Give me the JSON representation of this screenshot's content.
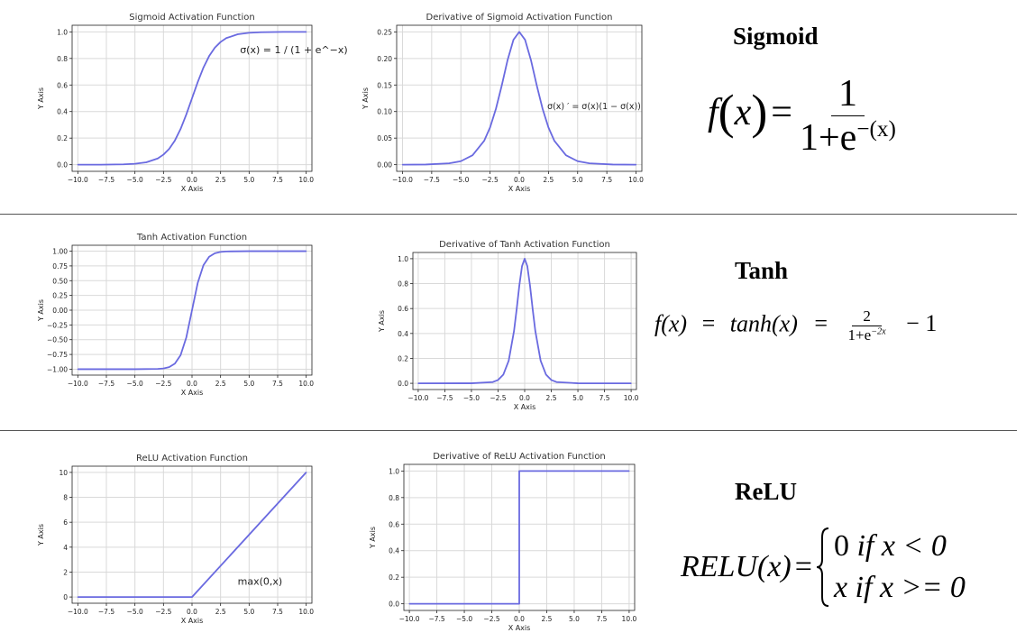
{
  "colors": {
    "line": "#6a6ae0",
    "grid": "#d9d9d9",
    "axis": "#000000"
  },
  "chart_data": [
    {
      "id": "sigmoid",
      "type": "line",
      "title": "Sigmoid Activation Function",
      "xlabel": "X Axis",
      "ylabel": "Y Axis",
      "xlim": [
        -10.5,
        10.5
      ],
      "ylim": [
        -0.05,
        1.05
      ],
      "xticks": [
        -10,
        -7.5,
        -5,
        -2.5,
        0,
        2.5,
        5,
        7.5,
        10
      ],
      "xtick_labels": [
        "−10.0",
        "−7.5",
        "−5.0",
        "−2.5",
        "0.0",
        "2.5",
        "5.0",
        "7.5",
        "10.0"
      ],
      "yticks": [
        0,
        0.2,
        0.4,
        0.6,
        0.8,
        1.0
      ],
      "ytick_labels": [
        "0.0",
        "0.2",
        "0.4",
        "0.6",
        "0.8",
        "1.0"
      ],
      "grid": true,
      "x": [
        -10,
        -8,
        -6,
        -5,
        -4,
        -3,
        -2.5,
        -2,
        -1.5,
        -1,
        -0.5,
        0,
        0.5,
        1,
        1.5,
        2,
        2.5,
        3,
        4,
        5,
        6,
        8,
        10
      ],
      "y": [
        0.0,
        0.0003,
        0.0025,
        0.0067,
        0.018,
        0.047,
        0.076,
        0.119,
        0.182,
        0.269,
        0.378,
        0.5,
        0.622,
        0.731,
        0.818,
        0.881,
        0.924,
        0.953,
        0.982,
        0.993,
        0.9975,
        0.9997,
        1.0
      ],
      "annotation": "σ(x) = 1 / (1 + e^−x)"
    },
    {
      "id": "sigmoid-deriv",
      "type": "line",
      "title": "Derivative of Sigmoid Activation Function",
      "xlabel": "X Axis",
      "ylabel": "Y Axis",
      "xlim": [
        -10.5,
        10.5
      ],
      "ylim": [
        -0.0125,
        0.2625
      ],
      "xticks": [
        -10,
        -7.5,
        -5,
        -2.5,
        0,
        2.5,
        5,
        7.5,
        10
      ],
      "xtick_labels": [
        "−10.0",
        "−7.5",
        "−5.0",
        "−2.5",
        "0.0",
        "2.5",
        "5.0",
        "7.5",
        "10.0"
      ],
      "yticks": [
        0,
        0.05,
        0.1,
        0.15,
        0.2,
        0.25
      ],
      "ytick_labels": [
        "0.00",
        "0.05",
        "0.10",
        "0.15",
        "0.20",
        "0.25"
      ],
      "grid": true,
      "x": [
        -10,
        -8,
        -6,
        -5,
        -4,
        -3,
        -2.5,
        -2,
        -1.5,
        -1,
        -0.5,
        0,
        0.5,
        1,
        1.5,
        2,
        2.5,
        3,
        4,
        5,
        6,
        8,
        10
      ],
      "y": [
        5e-05,
        0.0003,
        0.0025,
        0.0066,
        0.0177,
        0.0452,
        0.0701,
        0.105,
        0.149,
        0.197,
        0.235,
        0.25,
        0.235,
        0.197,
        0.149,
        0.105,
        0.0701,
        0.0452,
        0.0177,
        0.0066,
        0.0025,
        0.0003,
        5e-05
      ],
      "annotation": "σ(x) ′ = σ(x)(1 − σ(x))"
    },
    {
      "id": "tanh",
      "type": "line",
      "title": "Tanh Activation Function",
      "xlabel": "X Axis",
      "ylabel": "Y Axis",
      "xlim": [
        -10.5,
        10.5
      ],
      "ylim": [
        -1.1,
        1.1
      ],
      "xticks": [
        -10,
        -7.5,
        -5,
        -2.5,
        0,
        2.5,
        5,
        7.5,
        10
      ],
      "xtick_labels": [
        "−10.0",
        "−7.5",
        "−5.0",
        "−2.5",
        "0.0",
        "2.5",
        "5.0",
        "7.5",
        "10.0"
      ],
      "yticks": [
        -1,
        -0.75,
        -0.5,
        -0.25,
        0,
        0.25,
        0.5,
        0.75,
        1.0
      ],
      "ytick_labels": [
        "−1.00",
        "−0.75",
        "−0.50",
        "−0.25",
        "0.00",
        "0.25",
        "0.50",
        "0.75",
        "1.00"
      ],
      "grid": true,
      "x": [
        -10,
        -5,
        -3,
        -2.5,
        -2,
        -1.5,
        -1,
        -0.5,
        0,
        0.5,
        1,
        1.5,
        2,
        2.5,
        3,
        5,
        10
      ],
      "y": [
        -1,
        -0.9999,
        -0.995,
        -0.987,
        -0.964,
        -0.905,
        -0.762,
        -0.462,
        0,
        0.462,
        0.762,
        0.905,
        0.964,
        0.987,
        0.995,
        0.9999,
        1
      ]
    },
    {
      "id": "tanh-deriv",
      "type": "line",
      "title": "Derivative of Tanh Activation Function",
      "xlabel": "X Axis",
      "ylabel": "Y Axis",
      "xlim": [
        -10.5,
        10.5
      ],
      "ylim": [
        -0.05,
        1.05
      ],
      "xticks": [
        -10,
        -7.5,
        -5,
        -2.5,
        0,
        2.5,
        5,
        7.5,
        10
      ],
      "xtick_labels": [
        "−10.0",
        "−7.5",
        "−5.0",
        "−2.5",
        "0.0",
        "2.5",
        "5.0",
        "7.5",
        "10.0"
      ],
      "yticks": [
        0,
        0.2,
        0.4,
        0.6,
        0.8,
        1.0
      ],
      "ytick_labels": [
        "0.0",
        "0.2",
        "0.4",
        "0.6",
        "0.8",
        "1.0"
      ],
      "grid": true,
      "x": [
        -10,
        -5,
        -3,
        -2.5,
        -2,
        -1.5,
        -1,
        -0.75,
        -0.5,
        -0.25,
        0,
        0.25,
        0.5,
        0.75,
        1,
        1.5,
        2,
        2.5,
        3,
        5,
        10
      ],
      "y": [
        0,
        0.0002,
        0.0099,
        0.0266,
        0.0707,
        0.181,
        0.42,
        0.596,
        0.786,
        0.94,
        1.0,
        0.94,
        0.786,
        0.596,
        0.42,
        0.181,
        0.0707,
        0.0266,
        0.0099,
        0.0002,
        0
      ]
    },
    {
      "id": "relu",
      "type": "line",
      "title": "ReLU Activation Function",
      "xlabel": "X Axis",
      "ylabel": "Y Axis",
      "xlim": [
        -10.5,
        10.5
      ],
      "ylim": [
        -0.5,
        10.5
      ],
      "xticks": [
        -10,
        -7.5,
        -5,
        -2.5,
        0,
        2.5,
        5,
        7.5,
        10
      ],
      "xtick_labels": [
        "−10.0",
        "−7.5",
        "−5.0",
        "−2.5",
        "0.0",
        "2.5",
        "5.0",
        "7.5",
        "10.0"
      ],
      "yticks": [
        0,
        2,
        4,
        6,
        8,
        10
      ],
      "ytick_labels": [
        "0",
        "2",
        "4",
        "6",
        "8",
        "10"
      ],
      "grid": true,
      "x": [
        -10,
        0,
        10
      ],
      "y": [
        0,
        0,
        10
      ],
      "annotation": "max(0,x)"
    },
    {
      "id": "relu-deriv",
      "type": "line",
      "title": "Derivative of ReLU Activation Function",
      "xlabel": "X Axis",
      "ylabel": "Y Axis",
      "xlim": [
        -10.5,
        10.5
      ],
      "ylim": [
        -0.05,
        1.05
      ],
      "xticks": [
        -10,
        -7.5,
        -5,
        -2.5,
        0,
        2.5,
        5,
        7.5,
        10
      ],
      "xtick_labels": [
        "−10.0",
        "−7.5",
        "−5.0",
        "−2.5",
        "0.0",
        "2.5",
        "5.0",
        "7.5",
        "10.0"
      ],
      "yticks": [
        0,
        0.2,
        0.4,
        0.6,
        0.8,
        1.0
      ],
      "ytick_labels": [
        "0.0",
        "0.2",
        "0.4",
        "0.6",
        "0.8",
        "1.0"
      ],
      "grid": true,
      "x": [
        -10,
        0,
        0,
        10
      ],
      "y": [
        0,
        0,
        1,
        1
      ]
    }
  ],
  "formulas": {
    "sigmoid": {
      "title": "Sigmoid",
      "lhs": "f",
      "x": "x",
      "eq": "=",
      "num": "1",
      "den_base": "1+e",
      "den_exp": "−(x)"
    },
    "tanh": {
      "title": "Tanh",
      "lhs": "f(x)",
      "eq1": "=",
      "mid": "tanh(x)",
      "eq2": "=",
      "num": "2",
      "den_base": "1+e",
      "den_exp": "−2x",
      "tail": "− 1"
    },
    "relu": {
      "title": "ReLU",
      "lhs": "RELU(x)",
      "eq": "=",
      "case1_val": "0",
      "case1_if": "if",
      "case1_cond": "x < 0",
      "case2_val": "x",
      "case2_if": "if",
      "case2_cond": "x >= 0"
    }
  }
}
